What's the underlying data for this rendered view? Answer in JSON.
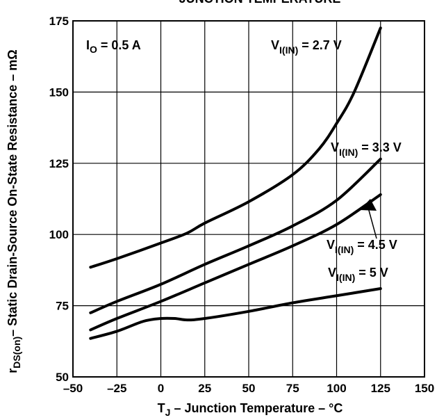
{
  "chart_data": {
    "type": "line",
    "title": "JUNCTION TEMPERATURE",
    "xlabel": {
      "pre": "T",
      "sub": "J",
      "post": " – Junction Temperature – °C"
    },
    "ylabel": {
      "pre": "r",
      "sub": "DS(on)",
      "post": "– Static Drain-Source On-State Resistance – mΩ"
    },
    "xlim": [
      -50,
      150
    ],
    "ylim": [
      50,
      175
    ],
    "xticks": [
      -50,
      -25,
      0,
      25,
      50,
      75,
      100,
      125,
      150
    ],
    "xtick_labels": [
      "–50",
      "–25",
      "0",
      "25",
      "50",
      "75",
      "100",
      "125",
      "150"
    ],
    "yticks": [
      50,
      75,
      100,
      125,
      150,
      175
    ],
    "ytick_labels": [
      "50",
      "75",
      "100",
      "125",
      "150",
      "175"
    ],
    "grid": true,
    "annotation": {
      "pre": "I",
      "sub": "O",
      "post": " = 0.5 A"
    },
    "series": [
      {
        "label": {
          "pre": "V",
          "sub": "I(IN)",
          "post": " = 2.7 V"
        },
        "x": [
          -40,
          -25,
          0,
          15,
          25,
          50,
          75,
          90,
          100,
          110,
          125
        ],
        "y": [
          88.5,
          91.5,
          97,
          100.5,
          104,
          111.5,
          121,
          130,
          139,
          150,
          172.5
        ]
      },
      {
        "label": {
          "pre": "V",
          "sub": "I(IN)",
          "post": " = 3.3 V"
        },
        "x": [
          -40,
          -25,
          0,
          25,
          50,
          75,
          100,
          125
        ],
        "y": [
          72.5,
          76.5,
          82.5,
          89.5,
          96,
          103,
          112,
          126.5
        ]
      },
      {
        "label": {
          "pre": "V",
          "sub": "I(IN)",
          "post": " = 4.5 V"
        },
        "x": [
          -40,
          -25,
          0,
          25,
          50,
          75,
          100,
          125
        ],
        "y": [
          66.5,
          70.5,
          76.5,
          83,
          89.5,
          96,
          103.5,
          114
        ]
      },
      {
        "label": {
          "pre": "V",
          "sub": "I(IN)",
          "post": " = 5 V"
        },
        "x": [
          -40,
          -25,
          -10,
          0,
          8,
          15,
          25,
          50,
          75,
          100,
          125
        ],
        "y": [
          63.5,
          66,
          69.5,
          70.5,
          70.5,
          70,
          70.5,
          73,
          76,
          78.5,
          81
        ]
      }
    ]
  }
}
